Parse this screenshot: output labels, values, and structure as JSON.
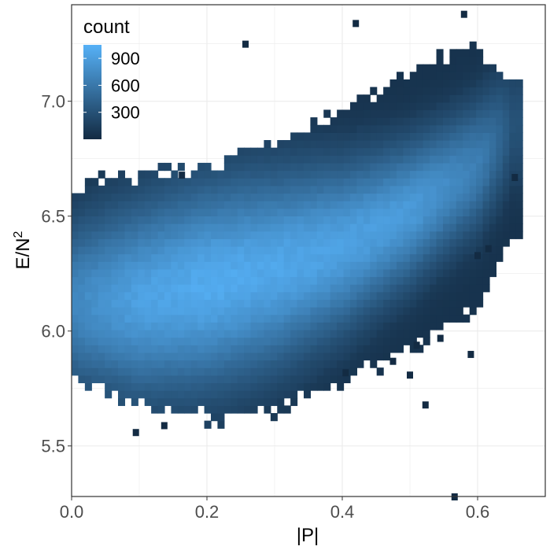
{
  "chart_data": {
    "type": "heatmap",
    "title": "",
    "xlabel": "|P|",
    "ylabel": "E/N",
    "ylabel_superscript": "2",
    "xlim": [
      0.0,
      0.7
    ],
    "ylim": [
      5.28,
      7.42
    ],
    "x_ticks": [
      0.0,
      0.2,
      0.4,
      0.6
    ],
    "x_tick_labels": [
      "0.0",
      "0.2",
      "0.4",
      "0.6"
    ],
    "y_ticks": [
      5.5,
      6.0,
      6.5,
      7.0
    ],
    "y_tick_labels": [
      "5.5",
      "6.0",
      "6.5",
      "7.0"
    ],
    "grid": true,
    "legend": {
      "title": "count",
      "position": "top-left inside",
      "range": [
        0,
        1050
      ],
      "ticks": [
        300,
        600,
        900
      ],
      "tick_labels": [
        "300",
        "600",
        "900"
      ]
    },
    "colors": {
      "low": "#132b43",
      "high": "#56b1f7",
      "grid": "#ebebeb",
      "panel_border": "#333333",
      "tick_text": "#4d4d4d"
    },
    "band": {
      "x_points": [
        0.0,
        0.1,
        0.2,
        0.3,
        0.4,
        0.5,
        0.6,
        0.65
      ],
      "upper": [
        6.63,
        6.68,
        6.72,
        6.82,
        6.95,
        7.12,
        7.25,
        7.1
      ],
      "lower": [
        5.82,
        5.67,
        5.62,
        5.66,
        5.78,
        5.92,
        6.12,
        6.4
      ],
      "peak_center": [
        6.12,
        6.14,
        6.2,
        6.27,
        6.37,
        6.52,
        6.72,
        6.9
      ],
      "peak_count": [
        500,
        850,
        1000,
        930,
        850,
        760,
        420,
        80
      ]
    },
    "outliers": [
      [
        0.257,
        7.25
      ],
      [
        0.42,
        7.34
      ],
      [
        0.566,
        5.28
      ],
      [
        0.095,
        5.56
      ],
      [
        0.137,
        5.59
      ],
      [
        0.523,
        5.68
      ],
      [
        0.58,
        7.38
      ],
      [
        0.655,
        6.67
      ],
      [
        0.405,
        5.82
      ],
      [
        0.5,
        5.81
      ],
      [
        0.545,
        5.97
      ],
      [
        0.475,
        5.87
      ],
      [
        0.51,
        5.94
      ],
      [
        0.6,
        6.33
      ],
      [
        0.616,
        6.36
      ],
      [
        0.163,
        6.68
      ],
      [
        0.59,
        5.9
      ]
    ]
  }
}
